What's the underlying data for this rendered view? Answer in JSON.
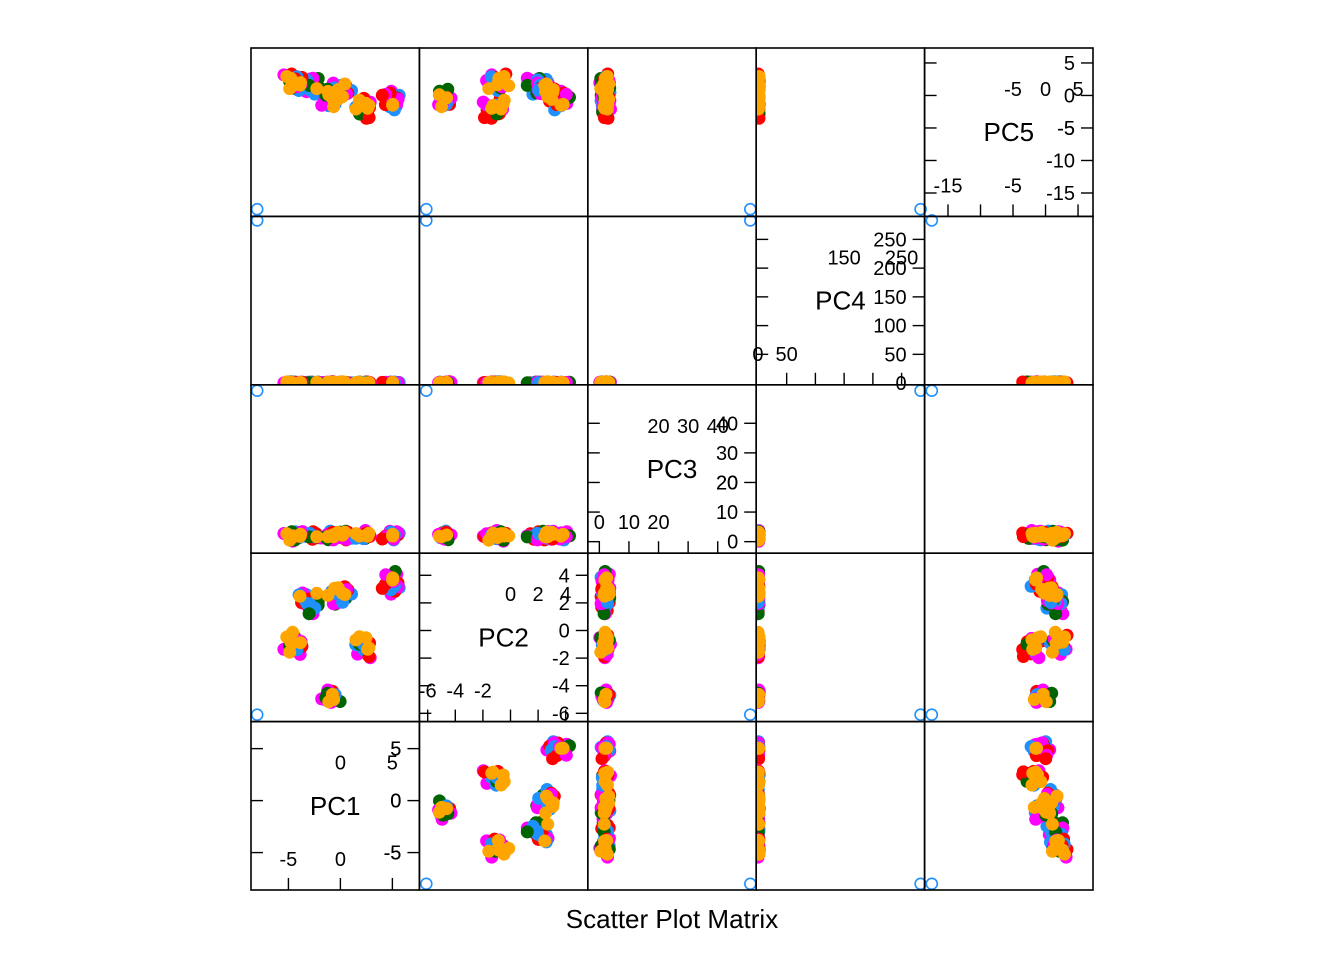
{
  "chart_data": {
    "type": "scatter",
    "title": "Scatter Plot Matrix",
    "variables": [
      "PC1",
      "PC2",
      "PC3",
      "PC4",
      "PC5"
    ],
    "colors": {
      "groups": [
        "#1E90FF",
        "#006400",
        "#FF00FF",
        "#FF0000",
        "#FFA500"
      ],
      "outlier": "#1E90FF",
      "axis": "#000000"
    },
    "legend": "none",
    "grid": false,
    "ranges": {
      "PC1": [
        -8.6,
        7.6
      ],
      "PC2": [
        -6.6,
        5.6
      ],
      "PC3": [
        -3.9,
        53
      ],
      "PC4": [
        -3,
        290
      ],
      "PC5": [
        -18.6,
        7.3
      ]
    },
    "ticks": {
      "PC1": {
        "outer": [
          -5,
          0,
          5
        ],
        "inner": [
          -5,
          0,
          5
        ]
      },
      "PC2": {
        "outer": [
          -6,
          -4,
          -2,
          0,
          2,
          4
        ],
        "inner": [
          -6,
          -4,
          -2,
          0,
          2,
          4
        ]
      },
      "PC3": {
        "outer": [
          0,
          10,
          20,
          30,
          40
        ],
        "inner": [
          0,
          10,
          20,
          30,
          40
        ]
      },
      "PC4": {
        "outer": [
          0,
          50,
          100,
          150,
          200,
          250
        ],
        "inner": [
          0,
          50,
          100,
          150,
          200,
          250
        ]
      },
      "PC5": {
        "outer": [
          -15,
          -10,
          -5,
          0,
          5
        ],
        "inner": [
          -15,
          -10,
          -5,
          0,
          5
        ]
      }
    },
    "tick_labels": {
      "PC1": {
        "outer_x": [
          "-5",
          "0"
        ],
        "outer_y": [
          "-5",
          "0",
          "5"
        ],
        "inner_x": [
          "0",
          "5"
        ],
        "inner_y": [
          "-5",
          "0",
          "5"
        ]
      },
      "PC2": {
        "outer_x": [
          "-6",
          "-4",
          "-2"
        ],
        "outer_y": [
          "-6",
          "-4",
          "-2",
          "",
          "",
          ""
        ],
        "inner_x": [
          "0",
          "2",
          "4"
        ],
        "inner_y": [
          "0",
          "2",
          "4"
        ]
      },
      "PC3": {
        "outer_x": [
          "0",
          "10",
          "20"
        ],
        "outer_y": [
          "0",
          "10",
          "20",
          "",
          ""
        ],
        "inner_x": [
          "20",
          "30",
          "40"
        ],
        "inner_y": [
          "20",
          "30",
          "40"
        ]
      },
      "PC4": {
        "outer_x": [
          "0",
          "50"
        ],
        "outer_y": [
          "0",
          "50",
          "100",
          "",
          "",
          ""
        ],
        "inner_x": [
          "150",
          "250"
        ],
        "inner_y": [
          "150",
          "200",
          "250"
        ]
      },
      "PC5": {
        "outer_x": [
          "-15",
          "-5"
        ],
        "outer_y": [
          "-15",
          "-10",
          "-5",
          "",
          ""
        ],
        "inner_x": [
          "-5",
          "0",
          "5"
        ],
        "inner_y": [
          "-5",
          "0",
          "5"
        ]
      }
    },
    "outlier": {
      "PC1": -8,
      "PC2": -6.1,
      "PC3": 51,
      "PC4": 283,
      "PC5": -17.5
    },
    "clusters": [
      {
        "PC1": -3.0,
        "PC2": 2.0,
        "PC5": 1.5,
        "s1": 1.3,
        "s2": 1.3
      },
      {
        "PC1": 0.0,
        "PC2": 2.4,
        "PC5": 1.0,
        "s1": 1.6,
        "s2": 1.3
      },
      {
        "PC1": 5.0,
        "PC2": 3.4,
        "PC5": -0.5,
        "s1": 1.2,
        "s2": 1.0
      },
      {
        "PC1": 2.5,
        "PC2": -1.2,
        "PC5": -2.0,
        "s1": 1.4,
        "s2": 1.1
      },
      {
        "PC1": -1.0,
        "PC2": -4.8,
        "PC5": -0.5,
        "s1": 1.3,
        "s2": 0.8
      },
      {
        "PC1": -4.5,
        "PC2": -1.0,
        "PC5": 2.0,
        "s1": 1.3,
        "s2": 1.2
      }
    ]
  }
}
